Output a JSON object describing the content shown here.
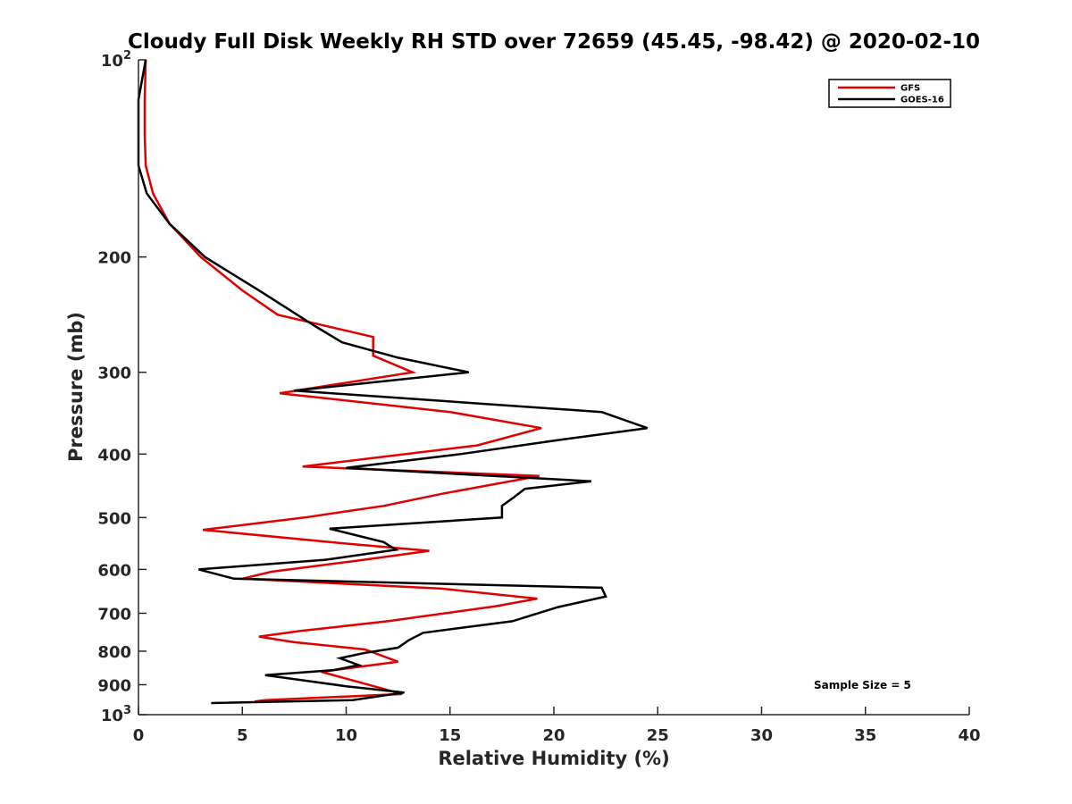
{
  "chart_data": {
    "type": "line",
    "title": "Cloudy Full Disk Weekly RH STD over 72659 (45.45, -98.42) @ 2020-02-10",
    "xlabel": "Relative Humidity (%)",
    "ylabel": "Pressure (mb)",
    "xlim": [
      0,
      40
    ],
    "ylim": [
      100,
      1000
    ],
    "y_scale": "log",
    "y_reversed": true,
    "x_ticks": [
      0,
      5,
      10,
      15,
      20,
      25,
      30,
      35,
      40
    ],
    "x_tick_labels": [
      "0",
      "5",
      "10",
      "15",
      "20",
      "25",
      "30",
      "35",
      "40"
    ],
    "y_ticks": [
      100,
      200,
      300,
      400,
      500,
      600,
      700,
      800,
      900,
      1000
    ],
    "y_tick_labels": [
      {
        "base": "10",
        "exp": "2"
      },
      {
        "base": "200",
        "exp": ""
      },
      {
        "base": "300",
        "exp": ""
      },
      {
        "base": "400",
        "exp": ""
      },
      {
        "base": "500",
        "exp": ""
      },
      {
        "base": "600",
        "exp": ""
      },
      {
        "base": "700",
        "exp": ""
      },
      {
        "base": "800",
        "exp": ""
      },
      {
        "base": "900",
        "exp": ""
      },
      {
        "base": "10",
        "exp": "3"
      }
    ],
    "grid": false,
    "legend_position": "top-right",
    "annotation": "Sample Size = 5",
    "series": [
      {
        "name": "GFS",
        "color": "#e00000",
        "points": [
          [
            0.35,
            100
          ],
          [
            0.3,
            115
          ],
          [
            0.3,
            130
          ],
          [
            0.35,
            145
          ],
          [
            0.7,
            160
          ],
          [
            1.5,
            178
          ],
          [
            3.0,
            200
          ],
          [
            5.0,
            225
          ],
          [
            6.7,
            245
          ],
          [
            11.3,
            265
          ],
          [
            11.3,
            283
          ],
          [
            13.2,
            300
          ],
          [
            6.8,
            323
          ],
          [
            15.0,
            345
          ],
          [
            19.4,
            365
          ],
          [
            16.3,
            388
          ],
          [
            7.9,
            418
          ],
          [
            19.3,
            432
          ],
          [
            14.6,
            460
          ],
          [
            11.8,
            480
          ],
          [
            8.0,
            500
          ],
          [
            3.1,
            522
          ],
          [
            10.0,
            548
          ],
          [
            14.0,
            562
          ],
          [
            10.5,
            582
          ],
          [
            6.4,
            605
          ],
          [
            5.0,
            620
          ],
          [
            14.6,
            642
          ],
          [
            19.2,
            665
          ],
          [
            17.2,
            683
          ],
          [
            12.0,
            720
          ],
          [
            7.8,
            745
          ],
          [
            5.8,
            760
          ],
          [
            7.5,
            775
          ],
          [
            10.9,
            795
          ],
          [
            12.5,
            830
          ],
          [
            8.8,
            860
          ],
          [
            12.7,
            930
          ],
          [
            6.1,
            950
          ],
          [
            5.6,
            955
          ]
        ]
      },
      {
        "name": "GOES-16",
        "color": "#000000",
        "points": [
          [
            0.35,
            100
          ],
          [
            0.0,
            115
          ],
          [
            0.0,
            130
          ],
          [
            0.0,
            145
          ],
          [
            0.4,
            160
          ],
          [
            1.5,
            178
          ],
          [
            3.2,
            200
          ],
          [
            5.8,
            225
          ],
          [
            8.5,
            255
          ],
          [
            9.8,
            270
          ],
          [
            12.5,
            285
          ],
          [
            15.9,
            300
          ],
          [
            7.5,
            320
          ],
          [
            22.3,
            345
          ],
          [
            24.5,
            365
          ],
          [
            20.4,
            380
          ],
          [
            15.5,
            400
          ],
          [
            10.0,
            420
          ],
          [
            21.8,
            440
          ],
          [
            18.6,
            452
          ],
          [
            18.1,
            465
          ],
          [
            17.5,
            480
          ],
          [
            17.5,
            500
          ],
          [
            9.2,
            520
          ],
          [
            11.8,
            545
          ],
          [
            12.4,
            560
          ],
          [
            9.0,
            580
          ],
          [
            2.9,
            600
          ],
          [
            4.6,
            620
          ],
          [
            22.3,
            640
          ],
          [
            22.5,
            660
          ],
          [
            20.2,
            685
          ],
          [
            18.0,
            720
          ],
          [
            13.7,
            750
          ],
          [
            13.0,
            770
          ],
          [
            12.5,
            790
          ],
          [
            10.9,
            805
          ],
          [
            9.7,
            820
          ],
          [
            10.6,
            840
          ],
          [
            9.4,
            855
          ],
          [
            6.1,
            870
          ],
          [
            10.0,
            905
          ],
          [
            12.8,
            925
          ],
          [
            10.3,
            950
          ],
          [
            3.5,
            960
          ]
        ]
      }
    ]
  }
}
